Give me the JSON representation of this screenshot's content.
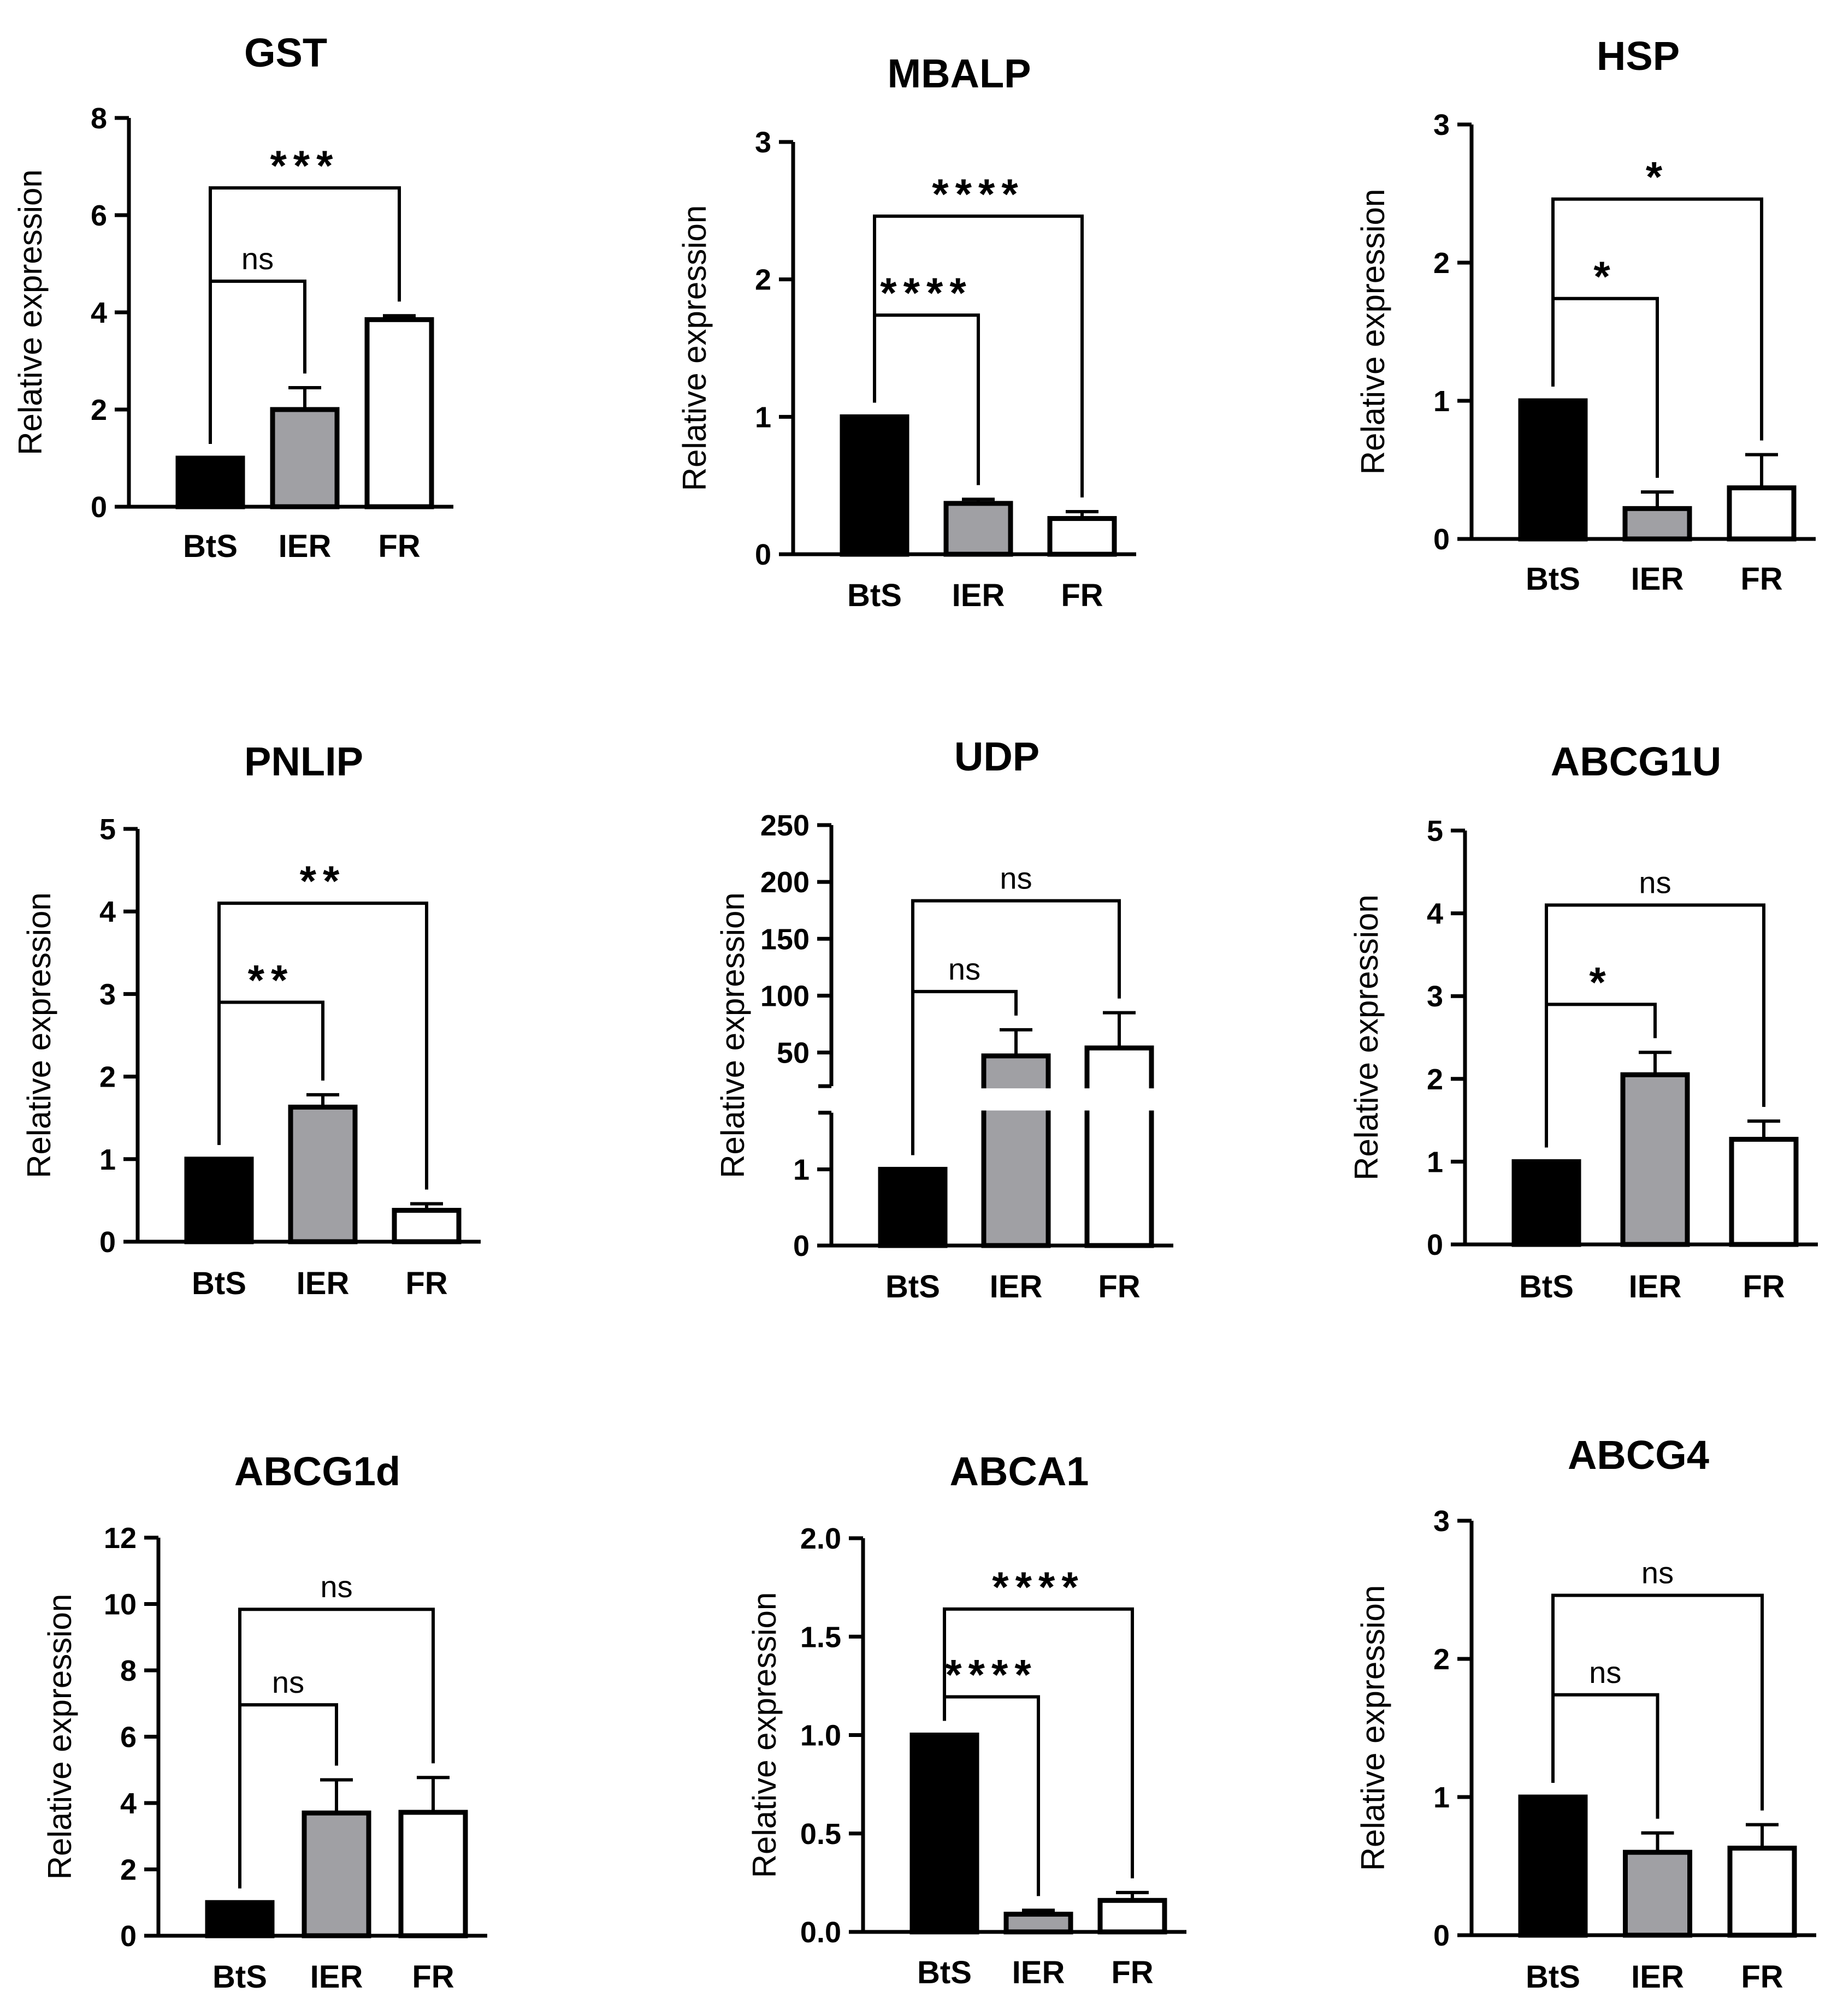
{
  "figure": {
    "series_colors": {
      "BtS": "#000000",
      "IER": "#a0a0a4",
      "FR": "#ffffff"
    },
    "bar_stroke": "#000000",
    "ylabel_text": "Relative expression"
  },
  "chart_data": [
    {
      "type": "bar",
      "title": "GST",
      "ylabel": "Relative expression",
      "categories": [
        "BtS",
        "IER",
        "FR"
      ],
      "values": [
        1.0,
        2.0,
        3.85
      ],
      "errors": [
        0,
        0.45,
        0.08
      ],
      "ylim": [
        0,
        8
      ],
      "yticks": [
        0,
        2,
        4,
        6,
        8
      ],
      "ytick_labels": [
        "0",
        "2",
        "4",
        "6",
        "8"
      ],
      "comparisons": [
        {
          "from": "BtS",
          "to": "IER",
          "label": "ns",
          "level": 1
        },
        {
          "from": "BtS",
          "to": "FR",
          "label": "***",
          "level": 2
        }
      ]
    },
    {
      "type": "bar",
      "title": "MBALP",
      "ylabel": "Relative expression",
      "categories": [
        "BtS",
        "IER",
        "FR"
      ],
      "values": [
        1.0,
        0.37,
        0.26
      ],
      "errors": [
        0,
        0.03,
        0.05
      ],
      "ylim": [
        0,
        3
      ],
      "yticks": [
        0,
        1,
        2,
        3
      ],
      "ytick_labels": [
        "0",
        "1",
        "2",
        "3"
      ],
      "comparisons": [
        {
          "from": "BtS",
          "to": "IER",
          "label": "****",
          "level": 1
        },
        {
          "from": "BtS",
          "to": "FR",
          "label": "****",
          "level": 2
        }
      ]
    },
    {
      "type": "bar",
      "title": "HSP",
      "ylabel": "Relative expression",
      "categories": [
        "BtS",
        "IER",
        "FR"
      ],
      "values": [
        1.0,
        0.22,
        0.37
      ],
      "errors": [
        0,
        0.12,
        0.24
      ],
      "ylim": [
        0,
        3
      ],
      "yticks": [
        0,
        1,
        2,
        3
      ],
      "ytick_labels": [
        "0",
        "1",
        "2",
        "3"
      ],
      "comparisons": [
        {
          "from": "BtS",
          "to": "IER",
          "label": "*",
          "level": 1
        },
        {
          "from": "BtS",
          "to": "FR",
          "label": "*",
          "level": 2
        }
      ]
    },
    {
      "type": "bar",
      "title": "PNLIP",
      "ylabel": "Relative expression",
      "categories": [
        "BtS",
        "IER",
        "FR"
      ],
      "values": [
        1.0,
        1.63,
        0.38
      ],
      "errors": [
        0,
        0.15,
        0.08
      ],
      "ylim": [
        0,
        5
      ],
      "yticks": [
        0,
        1,
        2,
        3,
        4,
        5
      ],
      "ytick_labels": [
        "0",
        "1",
        "2",
        "3",
        "4",
        "5"
      ],
      "comparisons": [
        {
          "from": "BtS",
          "to": "IER",
          "label": "**",
          "level": 1
        },
        {
          "from": "BtS",
          "to": "FR",
          "label": "**",
          "level": 2
        }
      ]
    },
    {
      "type": "bar",
      "title": "UDP",
      "ylabel": "Relative expression",
      "categories": [
        "BtS",
        "IER",
        "FR"
      ],
      "values": [
        1.0,
        47,
        54
      ],
      "errors": [
        0,
        23,
        31
      ],
      "axis_break": {
        "lower": [
          0,
          1.6
        ],
        "upper": [
          30,
          250
        ]
      },
      "ylim": [
        0,
        250
      ],
      "yticks": [
        0,
        1,
        50,
        100,
        150,
        200,
        250
      ],
      "ytick_labels": [
        "0",
        "1",
        "50",
        "100",
        "150",
        "200",
        "250"
      ],
      "comparisons": [
        {
          "from": "BtS",
          "to": "IER",
          "label": "ns",
          "level": 1
        },
        {
          "from": "BtS",
          "to": "FR",
          "label": "ns",
          "level": 2
        }
      ]
    },
    {
      "type": "bar",
      "title": "ABCG1U",
      "ylabel": "Relative expression",
      "categories": [
        "BtS",
        "IER",
        "FR"
      ],
      "values": [
        1.0,
        2.05,
        1.27
      ],
      "errors": [
        0,
        0.27,
        0.22
      ],
      "ylim": [
        0,
        5
      ],
      "yticks": [
        0,
        1,
        2,
        3,
        4,
        5
      ],
      "ytick_labels": [
        "0",
        "1",
        "2",
        "3",
        "4",
        "5"
      ],
      "comparisons": [
        {
          "from": "BtS",
          "to": "IER",
          "label": "*",
          "level": 1
        },
        {
          "from": "BtS",
          "to": "FR",
          "label": "ns",
          "level": 2
        }
      ]
    },
    {
      "type": "bar",
      "title": "ABCG1d",
      "ylabel": "Relative expression",
      "categories": [
        "BtS",
        "IER",
        "FR"
      ],
      "values": [
        1.0,
        3.7,
        3.72
      ],
      "errors": [
        0,
        1.0,
        1.05
      ],
      "ylim": [
        0,
        12
      ],
      "yticks": [
        0,
        2,
        4,
        6,
        8,
        10,
        12
      ],
      "ytick_labels": [
        "0",
        "2",
        "4",
        "6",
        "8",
        "10",
        "12"
      ],
      "comparisons": [
        {
          "from": "BtS",
          "to": "IER",
          "label": "ns",
          "level": 1
        },
        {
          "from": "BtS",
          "to": "FR",
          "label": "ns",
          "level": 2
        }
      ]
    },
    {
      "type": "bar",
      "title": "ABCA1",
      "ylabel": "Relative expression",
      "categories": [
        "BtS",
        "IER",
        "FR"
      ],
      "values": [
        1.0,
        0.09,
        0.16
      ],
      "errors": [
        0,
        0.02,
        0.04
      ],
      "ylim": [
        0,
        2.0
      ],
      "yticks": [
        0,
        0.5,
        1.0,
        1.5,
        2.0
      ],
      "ytick_labels": [
        "0.0",
        "0.5",
        "1.0",
        "1.5",
        "2.0"
      ],
      "comparisons": [
        {
          "from": "BtS",
          "to": "IER",
          "label": "****",
          "level": 1
        },
        {
          "from": "BtS",
          "to": "FR",
          "label": "****",
          "level": 2
        }
      ]
    },
    {
      "type": "bar",
      "title": "ABCG4",
      "ylabel": "Relative expression",
      "categories": [
        "BtS",
        "IER",
        "FR"
      ],
      "values": [
        1.0,
        0.6,
        0.63
      ],
      "errors": [
        0,
        0.14,
        0.17
      ],
      "ylim": [
        0,
        3
      ],
      "yticks": [
        0,
        1,
        2,
        3
      ],
      "ytick_labels": [
        "0",
        "1",
        "2",
        "3"
      ],
      "comparisons": [
        {
          "from": "BtS",
          "to": "IER",
          "label": "ns",
          "level": 1
        },
        {
          "from": "BtS",
          "to": "FR",
          "label": "ns",
          "level": 2
        }
      ]
    }
  ]
}
